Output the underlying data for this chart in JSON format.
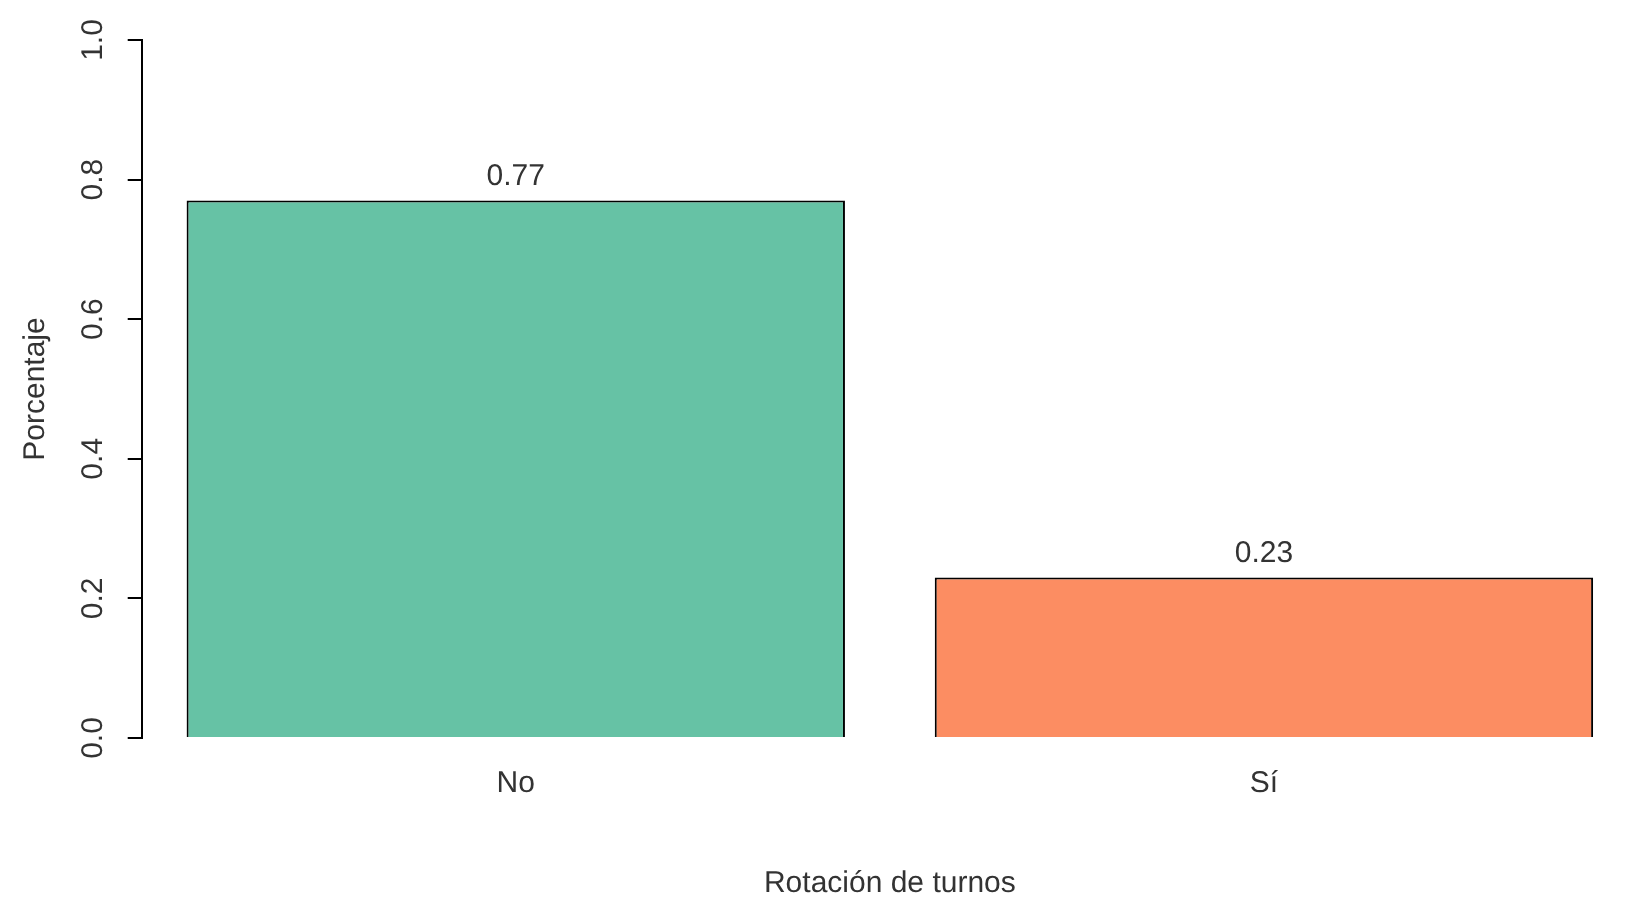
{
  "chart_data": {
    "type": "bar",
    "xlabel": "Rotación de turnos",
    "ylabel": "Porcentaje",
    "categories": [
      "No",
      "Sí"
    ],
    "values": [
      0.77,
      0.23
    ],
    "colors": [
      "#66c2a5",
      "#fc8d62"
    ],
    "ylim": [
      0,
      1
    ],
    "yticks": [
      {
        "value": 0,
        "label": "0.0"
      },
      {
        "value": 0.2,
        "label": "0.2"
      },
      {
        "value": 0.4,
        "label": "0.4"
      },
      {
        "value": 0.6,
        "label": "0.6"
      },
      {
        "value": 0.8,
        "label": "0.8"
      },
      {
        "value": 1,
        "label": "1.0"
      }
    ],
    "grid": false,
    "legend": false,
    "data_labels": true
  }
}
